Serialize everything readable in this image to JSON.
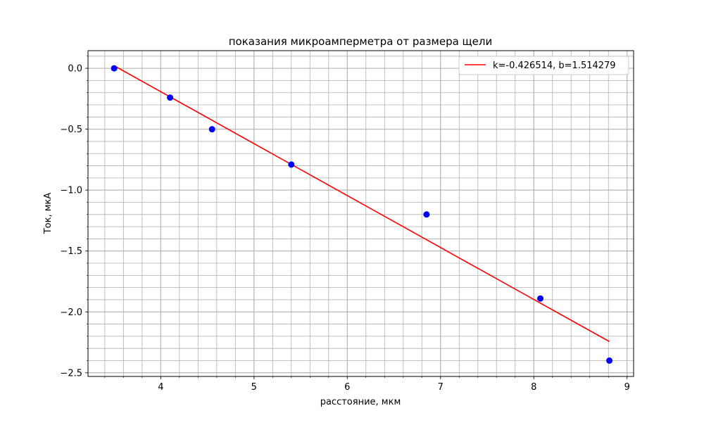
{
  "chart_data": {
    "type": "scatter",
    "title": "показания микроамперметра от размера щели",
    "xlabel": "расстояние, мкм",
    "ylabel": "Ток, мкА",
    "xlim": [
      3.22,
      9.07
    ],
    "ylim": [
      -2.53,
      0.145
    ],
    "x_ticks": [
      4,
      5,
      6,
      7,
      8,
      9
    ],
    "x_tick_labels": [
      "4",
      "5",
      "6",
      "7",
      "8",
      "9"
    ],
    "y_ticks": [
      0.0,
      -0.5,
      -1.0,
      -1.5,
      -2.0,
      -2.5
    ],
    "y_tick_labels": [
      "0.0",
      "−0.5",
      "−1.0",
      "−1.5",
      "−2.0",
      "−2.5"
    ],
    "grid": true,
    "minor_grid": true,
    "x_minor_step": 0.2,
    "y_minor_step": 0.1,
    "legend_position": "top-right",
    "series": [
      {
        "kind": "points",
        "color": "#0000ff",
        "x": [
          3.5,
          4.1,
          4.55,
          5.4,
          6.85,
          8.07,
          8.81
        ],
        "y": [
          0.0,
          -0.24,
          -0.5,
          -0.79,
          -1.2,
          -1.89,
          -2.4
        ]
      },
      {
        "kind": "line",
        "name": "k=-0.426514, b=1.514279",
        "color": "#ff0000",
        "k": -0.426514,
        "b": 1.514279,
        "x_range": [
          3.5,
          8.81
        ]
      }
    ]
  }
}
